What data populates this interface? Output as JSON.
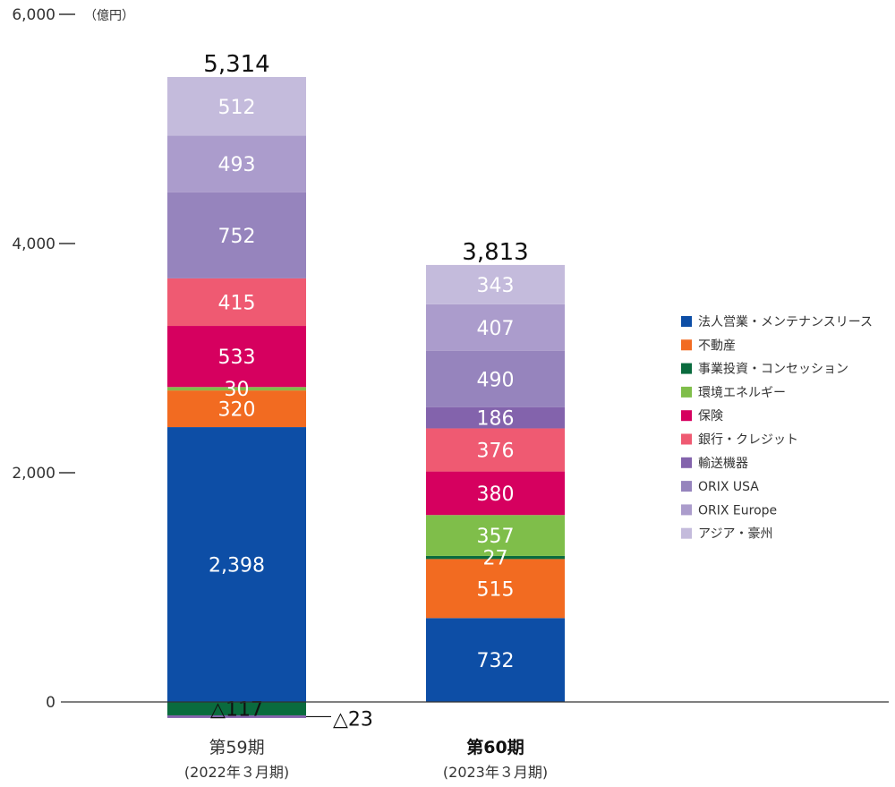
{
  "chart_data": {
    "type": "bar",
    "stacked": true,
    "unit": "（億円）",
    "ylim": [
      -200,
      6000
    ],
    "yticks": [
      {
        "value": 6000,
        "label": "6,000"
      },
      {
        "value": 4000,
        "label": "4,000"
      },
      {
        "value": 2000,
        "label": "2,000"
      },
      {
        "value": 0,
        "label": "0"
      }
    ],
    "categories": [
      {
        "label": "第59期",
        "sub": "(2022年３月期)",
        "bold": false,
        "total": "5,314"
      },
      {
        "label": "第60期",
        "sub": "(2023年３月期)",
        "bold": true,
        "total": "3,813"
      }
    ],
    "series": [
      {
        "name": "法人営業・メンテナンスリース",
        "color": "#0d4ea6",
        "values": [
          2398,
          732
        ],
        "labels": [
          "2,398",
          "732"
        ]
      },
      {
        "name": "不動産",
        "color": "#f26b21",
        "values": [
          320,
          515
        ],
        "labels": [
          "320",
          "515"
        ]
      },
      {
        "name": "事業投資・コンセッション",
        "color": "#0a6b3e",
        "values": [
          -117,
          27
        ],
        "labels": [
          "△117",
          "27"
        ]
      },
      {
        "name": "環境エネルギー",
        "color": "#7fbe4a",
        "values": [
          30,
          357
        ],
        "labels": [
          "30",
          "357"
        ]
      },
      {
        "name": "保険",
        "color": "#d6005f",
        "values": [
          533,
          380
        ],
        "labels": [
          "533",
          "380"
        ]
      },
      {
        "name": "銀行・クレジット",
        "color": "#ef5a72",
        "values": [
          415,
          376
        ],
        "labels": [
          "415",
          "376"
        ]
      },
      {
        "name": "輸送機器",
        "color": "#8363ac",
        "values": [
          -23,
          186
        ],
        "labels": [
          "△23",
          "186"
        ]
      },
      {
        "name": "ORIX USA",
        "color": "#9684bd",
        "values": [
          752,
          490
        ],
        "labels": [
          "752",
          "490"
        ]
      },
      {
        "name": "ORIX Europe",
        "color": "#ab9ccc",
        "values": [
          493,
          407
        ],
        "labels": [
          "493",
          "407"
        ]
      },
      {
        "name": "アジア・豪州",
        "color": "#c4bbdc",
        "values": [
          512,
          343
        ],
        "labels": [
          "512",
          "343"
        ]
      }
    ],
    "legend": "right"
  }
}
